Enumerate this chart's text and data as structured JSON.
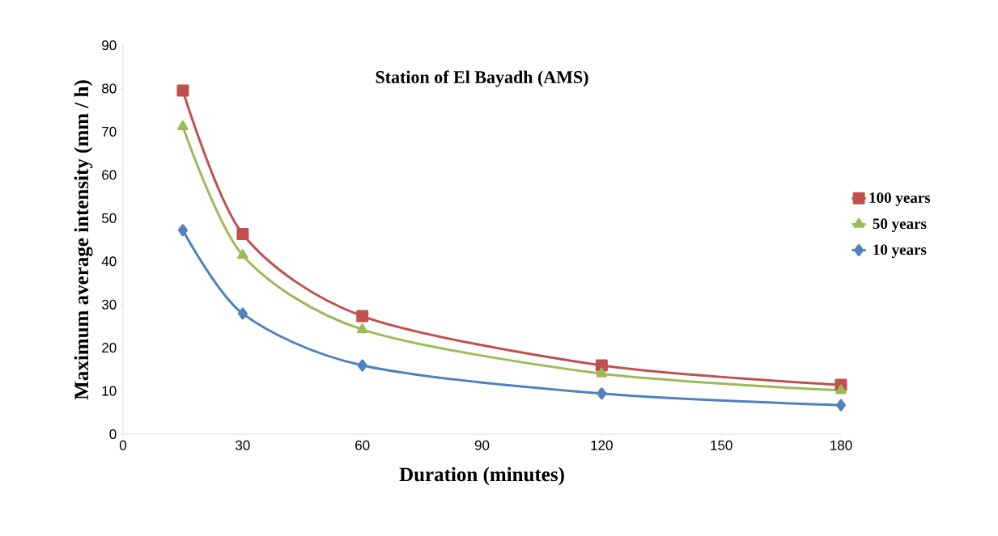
{
  "chart_data": {
    "type": "line",
    "title": "Station of El Bayadh (AMS)",
    "xlabel": "Duration (minutes)",
    "ylabel": "Maximum average intensity (mm / h)",
    "x": [
      15,
      30,
      60,
      120,
      180
    ],
    "series": [
      {
        "name": "100 years",
        "color": "#c0504d",
        "marker": "square",
        "values": [
          79.5,
          46.3,
          27.3,
          15.9,
          11.4
        ]
      },
      {
        "name": "50 years",
        "color": "#9bbb59",
        "marker": "triangle",
        "values": [
          71.2,
          41.4,
          24.2,
          14.0,
          10.1
        ]
      },
      {
        "name": "10 years",
        "color": "#4f81bd",
        "marker": "diamond",
        "values": [
          47.2,
          27.9,
          15.9,
          9.4,
          6.7
        ]
      }
    ],
    "xlim": [
      0,
      180
    ],
    "xticks": [
      0,
      30,
      60,
      90,
      120,
      150,
      180
    ],
    "ylim": [
      0,
      90
    ],
    "yticks": [
      0,
      10,
      20,
      30,
      40,
      50,
      60,
      70,
      80,
      90
    ],
    "grid": false,
    "legend": "right",
    "line_style": "solid"
  }
}
